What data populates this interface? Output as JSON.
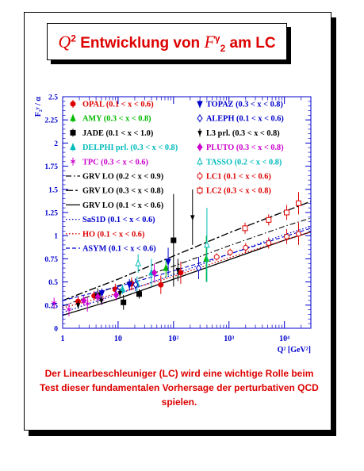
{
  "title": {
    "math_prefix": "Q",
    "exp_prefix": "2",
    "word": " Entwicklung von ",
    "math_f": "F",
    "f_sub": "2",
    "f_sup": "γ",
    "suffix": " am LC"
  },
  "caption": "Der Linearbeschleuniger (LC) wird eine wichtige Rolle beim Test dieser fundamentalen Vorhersage der perturbativen QCD spielen.",
  "colors": {
    "accent": "#dd0000",
    "axis": "#0000cc",
    "frame": "#000000"
  },
  "chart_data": {
    "type": "scatter",
    "xlabel": "Q² [GeV²]",
    "ylabel": "F₂ᵞ / α",
    "xscale": "log",
    "xlim": [
      1,
      30000
    ],
    "ylim": [
      0,
      2.5
    ],
    "xticks": [
      {
        "v": 1,
        "l": "1"
      },
      {
        "v": 10,
        "l": "10"
      },
      {
        "v": 100,
        "l": "10²"
      },
      {
        "v": 1000,
        "l": "10³"
      },
      {
        "v": 10000,
        "l": "10⁴"
      }
    ],
    "yticks": [
      {
        "v": 0,
        "l": "0"
      },
      {
        "v": 0.25,
        "l": "0.25"
      },
      {
        "v": 0.5,
        "l": "0.5"
      },
      {
        "v": 0.75,
        "l": "0.75"
      },
      {
        "v": 1,
        "l": "1"
      },
      {
        "v": 1.25,
        "l": "1.25"
      },
      {
        "v": 1.5,
        "l": "1.5"
      },
      {
        "v": 1.75,
        "l": "1.75"
      },
      {
        "v": 2,
        "l": "2"
      },
      {
        "v": 2.25,
        "l": "2.25"
      },
      {
        "v": 2.5,
        "l": "2.5"
      }
    ],
    "legend_left": [
      {
        "label": "OPAL (0.1 < x < 0.6)",
        "color": "#dd0000",
        "marker": "circle"
      },
      {
        "label": "AMY (0.3 < x < 0.8)",
        "color": "#00bb00",
        "marker": "triangle"
      },
      {
        "label": "JADE (0.1 < x < 1.0)",
        "color": "#000000",
        "marker": "square"
      },
      {
        "label": "DELPHI prl. (0.3 < x < 0.8)",
        "color": "#00bbbb",
        "marker": "triangle"
      },
      {
        "label": "TPC (0.3 < x < 0.6)",
        "color": "#cc00cc",
        "marker": "star"
      },
      {
        "label": "GRV LO (0.2 < x < 0.9)",
        "color": "#000000",
        "marker": "line-dashdot"
      },
      {
        "label": "GRV LO (0.3 < x < 0.8)",
        "color": "#000000",
        "marker": "line-dashdot2"
      },
      {
        "label": "GRV LO (0.1 < x < 0.6)",
        "color": "#000000",
        "marker": "line-solid"
      },
      {
        "label": "SaS1D (0.1 < x < 0.6)",
        "color": "#0000cc",
        "marker": "line-dotted"
      },
      {
        "label": "HO (0.1 < x < 0.6)",
        "color": "#dd0000",
        "marker": "line-dotted"
      },
      {
        "label": "ASYM (0.1 < x < 0.6)",
        "color": "#0000cc",
        "marker": "line-dashed"
      }
    ],
    "legend_right": [
      {
        "label": "TOPAZ (0.3 < x < 0.8)",
        "color": "#0000cc",
        "marker": "triangle-down"
      },
      {
        "label": "ALEPH (0.1 < x < 0.6)",
        "color": "#0000cc",
        "marker": "diamond-open"
      },
      {
        "label": "L3 prl. (0.3 < x < 0.8)",
        "color": "#000000",
        "marker": "triangle-down-small"
      },
      {
        "label": "PLUTO (0.3 < x < 0.8)",
        "color": "#cc00cc",
        "marker": "diamond"
      },
      {
        "label": "TASSO (0.2 < x < 0.8)",
        "color": "#00bbbb",
        "marker": "triangle-open"
      },
      {
        "label": "LC1 (0.1 < x < 0.6)",
        "color": "#dd0000",
        "marker": "circle-open"
      },
      {
        "label": "LC2 (0.3 < x < 0.8)",
        "color": "#dd0000",
        "marker": "square-open"
      }
    ],
    "series": [
      {
        "name": "OPAL",
        "color": "#dd0000",
        "marker": "circle",
        "points": [
          [
            1.9,
            0.29,
            0.05
          ],
          [
            3.7,
            0.35,
            0.05
          ],
          [
            8.9,
            0.42,
            0.06
          ],
          [
            17.5,
            0.48,
            0.07
          ],
          [
            59,
            0.47,
            0.1
          ],
          [
            135,
            0.6,
            0.12
          ]
        ]
      },
      {
        "name": "AMY",
        "color": "#00bb00",
        "marker": "triangle",
        "points": [
          [
            73,
            0.65,
            0.1
          ],
          [
            390,
            0.75,
            0.25
          ]
        ]
      },
      {
        "name": "JADE",
        "color": "#000000",
        "marker": "square",
        "points": [
          [
            4.3,
            0.35,
            0.08
          ],
          [
            12.5,
            0.28,
            0.08
          ],
          [
            24,
            0.37,
            0.05
          ],
          [
            100,
            0.95,
            0.5
          ]
        ]
      },
      {
        "name": "DELPHI prl.",
        "color": "#00bbbb",
        "marker": "triangle",
        "points": [
          [
            12,
            0.42,
            0.05
          ],
          [
            22,
            0.48,
            0.08
          ],
          [
            40,
            0.6,
            0.15
          ]
        ]
      },
      {
        "name": "TPC",
        "color": "#cc00cc",
        "marker": "star",
        "points": [
          [
            0.7,
            0.27,
            0.06
          ],
          [
            1.3,
            0.2,
            0.07
          ],
          [
            2.8,
            0.26,
            0.08
          ],
          [
            5.1,
            0.31,
            0.06
          ]
        ]
      },
      {
        "name": "TOPAZ",
        "color": "#0000cc",
        "marker": "triangle-down",
        "points": [
          [
            5.1,
            0.38,
            0.05
          ],
          [
            16,
            0.47,
            0.06
          ],
          [
            80,
            0.72,
            0.15
          ]
        ]
      },
      {
        "name": "ALEPH",
        "color": "#0000cc",
        "marker": "diamond-open",
        "points": [
          [
            9.9,
            0.4,
            0.06
          ],
          [
            20.7,
            0.47,
            0.07
          ],
          [
            284,
            0.65,
            0.12
          ]
        ]
      },
      {
        "name": "L3 prl.",
        "color": "#000000",
        "marker": "triangle-down-small",
        "points": [
          [
            1.9,
            0.25,
            0.04
          ],
          [
            5,
            0.3,
            0.04
          ],
          [
            10.8,
            0.38,
            0.05
          ],
          [
            120,
            0.63,
            0.12
          ],
          [
            220,
            1.2,
            0.3
          ]
        ]
      },
      {
        "name": "PLUTO",
        "color": "#cc00cc",
        "marker": "diamond",
        "points": [
          [
            2.4,
            0.3,
            0.05
          ],
          [
            4.3,
            0.34,
            0.05
          ],
          [
            9.2,
            0.36,
            0.06
          ],
          [
            45,
            0.6,
            0.1
          ]
        ]
      },
      {
        "name": "TASSO",
        "color": "#00bbbb",
        "marker": "triangle-open",
        "points": [
          [
            23,
            0.7,
            0.1
          ],
          [
            400,
            0.9,
            0.4
          ]
        ]
      },
      {
        "name": "LC1",
        "color": "#dd0000",
        "marker": "circle-open",
        "points": [
          [
            600,
            0.77,
            0.04
          ],
          [
            1050,
            0.82,
            0.04
          ],
          [
            2000,
            0.87,
            0.05
          ],
          [
            5200,
            0.92,
            0.06
          ],
          [
            11000,
            0.99,
            0.08
          ],
          [
            18000,
            1.02,
            0.12
          ]
        ]
      },
      {
        "name": "LC2",
        "color": "#dd0000",
        "marker": "square-open",
        "points": [
          [
            1950,
            1.08,
            0.06
          ],
          [
            5200,
            1.17,
            0.06
          ],
          [
            11000,
            1.25,
            0.08
          ],
          [
            18000,
            1.35,
            0.12
          ]
        ]
      }
    ],
    "curves": [
      {
        "name": "GRV LO (0.2 < x < 0.9)",
        "color": "#000000",
        "style": "dashdot",
        "width": 1.1,
        "points": [
          [
            1,
            0.24
          ],
          [
            10,
            0.46
          ],
          [
            100,
            0.67
          ],
          [
            1000,
            0.89
          ],
          [
            10000,
            1.1
          ],
          [
            30000,
            1.19
          ]
        ]
      },
      {
        "name": "GRV LO (0.3 < x < 0.8)",
        "color": "#000000",
        "style": "dashdot2",
        "width": 1.4,
        "points": [
          [
            1,
            0.3
          ],
          [
            10,
            0.53
          ],
          [
            100,
            0.78
          ],
          [
            1000,
            1.03
          ],
          [
            10000,
            1.26
          ],
          [
            30000,
            1.37
          ]
        ]
      },
      {
        "name": "GRV LO (0.1 < x < 0.6)",
        "color": "#000000",
        "style": "solid",
        "width": 1.3,
        "points": [
          [
            1,
            0.14
          ],
          [
            10,
            0.32
          ],
          [
            100,
            0.53
          ],
          [
            1000,
            0.74
          ],
          [
            10000,
            0.95
          ],
          [
            30000,
            1.04
          ]
        ]
      },
      {
        "name": "SaS1D (0.1 < x < 0.6)",
        "color": "#0000cc",
        "style": "dotted",
        "width": 1.3,
        "points": [
          [
            1,
            0.17
          ],
          [
            10,
            0.37
          ],
          [
            100,
            0.58
          ],
          [
            1000,
            0.8
          ],
          [
            10000,
            1.01
          ],
          [
            30000,
            1.1
          ]
        ]
      },
      {
        "name": "HO (0.1 < x < 0.6)",
        "color": "#dd0000",
        "style": "dotted",
        "width": 1.3,
        "points": [
          [
            1,
            0.22
          ],
          [
            10,
            0.38
          ],
          [
            100,
            0.56
          ],
          [
            1000,
            0.76
          ],
          [
            10000,
            0.95
          ],
          [
            30000,
            1.04
          ]
        ]
      },
      {
        "name": "ASYM (0.1 < x < 0.6)",
        "color": "#0000cc",
        "style": "dashed",
        "width": 1.1,
        "points": [
          [
            1,
            0.3
          ],
          [
            10,
            0.45
          ],
          [
            100,
            0.62
          ],
          [
            1000,
            0.8
          ],
          [
            10000,
            0.99
          ],
          [
            30000,
            1.08
          ]
        ]
      }
    ]
  }
}
